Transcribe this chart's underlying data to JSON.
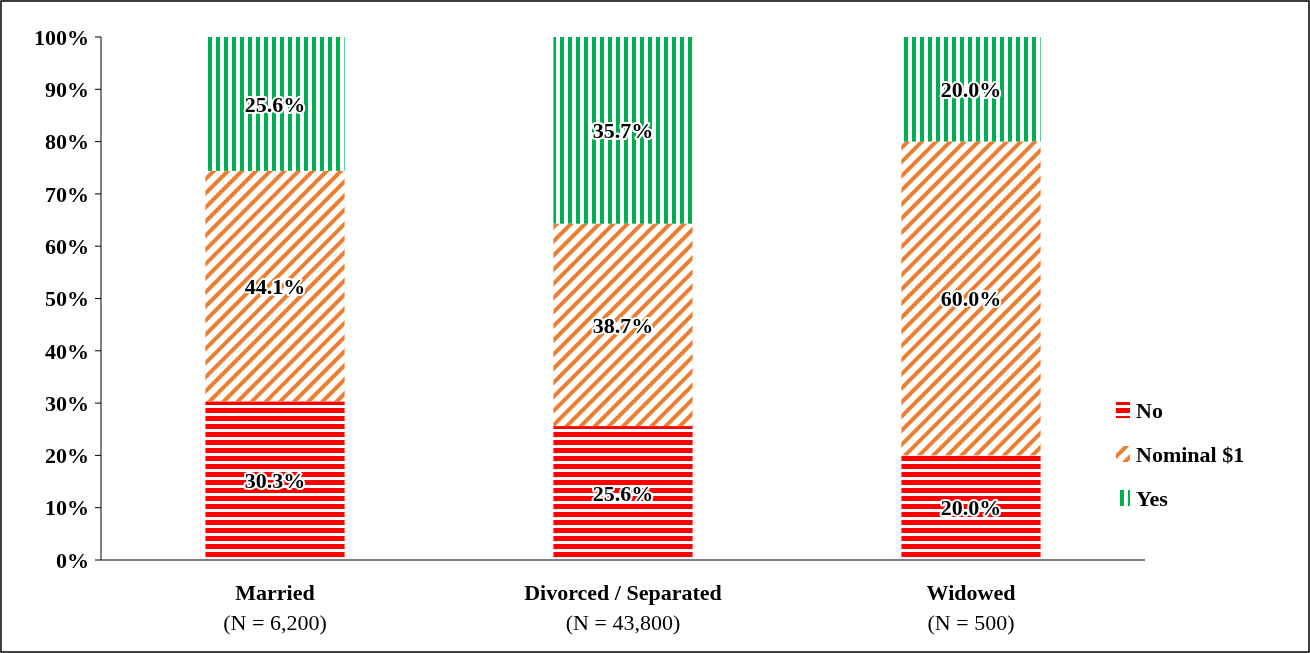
{
  "chart_data": {
    "type": "bar",
    "stacked": true,
    "categories": [
      "Married\n(N = 6,200)",
      "Divorced / Separated\n(N = 43,800)",
      "Widowed\n(N = 500)"
    ],
    "series": [
      {
        "name": "No",
        "color": "#ff0000",
        "values": [
          30.3,
          25.6,
          20.0
        ],
        "value_labels": [
          "30.3%",
          "25.6%",
          "20.0%"
        ]
      },
      {
        "name": "Nominal $1",
        "color": "#ed7d31",
        "values": [
          44.1,
          38.7,
          60.0
        ],
        "value_labels": [
          "44.1%",
          "38.7%",
          "60.0%"
        ]
      },
      {
        "name": "Yes",
        "color": "#00b050",
        "values": [
          25.6,
          35.7,
          20.0
        ],
        "value_labels": [
          "25.6%",
          "35.7%",
          "20.0%"
        ]
      }
    ],
    "ylim": [
      0,
      100
    ],
    "yticks": [
      {
        "value": 0,
        "label": "0%"
      },
      {
        "value": 10,
        "label": "10%"
      },
      {
        "value": 20,
        "label": "20%"
      },
      {
        "value": 30,
        "label": "30%"
      },
      {
        "value": 40,
        "label": "40%"
      },
      {
        "value": 50,
        "label": "50%"
      },
      {
        "value": 60,
        "label": "60%"
      },
      {
        "value": 70,
        "label": "70%"
      },
      {
        "value": 80,
        "label": "80%"
      },
      {
        "value": 90,
        "label": "90%"
      },
      {
        "value": 100,
        "label": "100%"
      }
    ],
    "grid": false,
    "legend": "right"
  }
}
